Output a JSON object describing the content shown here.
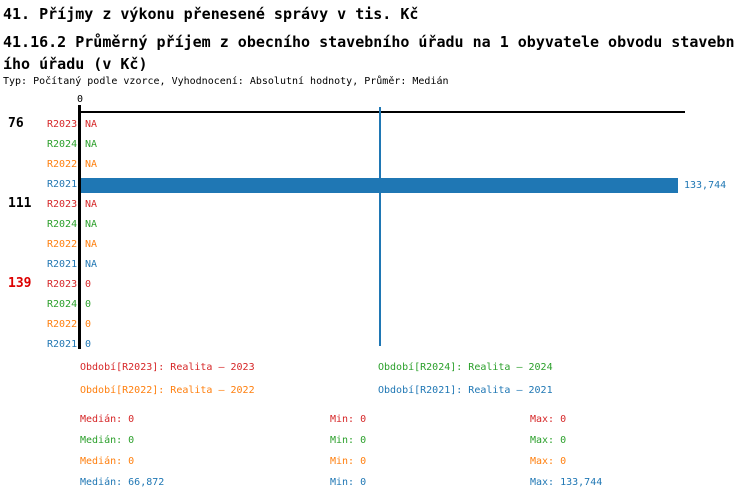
{
  "page": {
    "background": "#ffffff"
  },
  "header": {
    "title": "41. Příjmy z výkonu přenesené správy v tis. Kč",
    "subtitle_line1": "41.16.2 Průměrný příjem z obecního stavebního úřadu na 1 obyvatele obvodu stavebn",
    "subtitle_line2": "ího úřadu (v Kč)",
    "meta": "Typ: Počítaný podle vzorce, Vyhodnocení: Absolutní hodnoty, Průměr: Medián"
  },
  "colors": {
    "r2023": "#d62728",
    "r2024": "#2ca02c",
    "r2022": "#ff7f0e",
    "r2021": "#1f77b4",
    "group_label": "#000000",
    "group_label_highlight": "#dd0000",
    "axis": "#000000",
    "median_line": "#1f77b4"
  },
  "chart_data": {
    "type": "bar",
    "orientation": "horizontal",
    "title": "41. Příjmy z výkonu přenesené správy v tis. Kč",
    "subtitle": "41.16.2 Průměrný příjem z obecního stavebního úřadu na 1 obyvatele obvodu stavebního úřadu (v Kč)",
    "axis": {
      "tick_label": "0",
      "origin_value": 0,
      "scale_max": 133744,
      "gridlines": false
    },
    "median_marker": {
      "value": 66872,
      "color": "#1f77b4"
    },
    "series_order": [
      "R2023",
      "R2024",
      "R2022",
      "R2021"
    ],
    "groups": [
      "76",
      "111",
      "139"
    ],
    "rows": [
      {
        "group": "76",
        "series": "R2023",
        "value": "NA",
        "numeric": null
      },
      {
        "group": "",
        "series": "R2024",
        "value": "NA",
        "numeric": null
      },
      {
        "group": "",
        "series": "R2022",
        "value": "NA",
        "numeric": null
      },
      {
        "group": "",
        "series": "R2021",
        "value": "133,744",
        "numeric": 133744
      },
      {
        "group": "111",
        "series": "R2023",
        "value": "NA",
        "numeric": null
      },
      {
        "group": "",
        "series": "R2024",
        "value": "NA",
        "numeric": null
      },
      {
        "group": "",
        "series": "R2022",
        "value": "NA",
        "numeric": null
      },
      {
        "group": "",
        "series": "R2021",
        "value": "NA",
        "numeric": null
      },
      {
        "group": "139",
        "series": "R2023",
        "value": "0",
        "numeric": 0
      },
      {
        "group": "",
        "series": "R2024",
        "value": "0",
        "numeric": 0
      },
      {
        "group": "",
        "series": "R2022",
        "value": "0",
        "numeric": 0
      },
      {
        "group": "",
        "series": "R2021",
        "value": "0",
        "numeric": 0
      }
    ],
    "legend": [
      {
        "series": "R2023",
        "label": "Období[R2023]: Realita – 2023",
        "color": "#d62728"
      },
      {
        "series": "R2024",
        "label": "Období[R2024]: Realita – 2024",
        "color": "#2ca02c"
      },
      {
        "series": "R2022",
        "label": "Období[R2022]: Realita – 2022",
        "color": "#ff7f0e"
      },
      {
        "series": "R2021",
        "label": "Období[R2021]: Realita – 2021",
        "color": "#1f77b4"
      }
    ],
    "stats": [
      {
        "series": "R2023",
        "median": "Medián: 0",
        "min": "Min: 0",
        "max": "Max: 0",
        "color": "#d62728"
      },
      {
        "series": "R2024",
        "median": "Medián: 0",
        "min": "Min: 0",
        "max": "Max: 0",
        "color": "#2ca02c"
      },
      {
        "series": "R2022",
        "median": "Medián: 0",
        "min": "Min: 0",
        "max": "Max: 0",
        "color": "#ff7f0e"
      },
      {
        "series": "R2021",
        "median": "Medián: 66,872",
        "min": "Min: 0",
        "max": "Max: 133,744",
        "color": "#1f77b4"
      }
    ]
  }
}
